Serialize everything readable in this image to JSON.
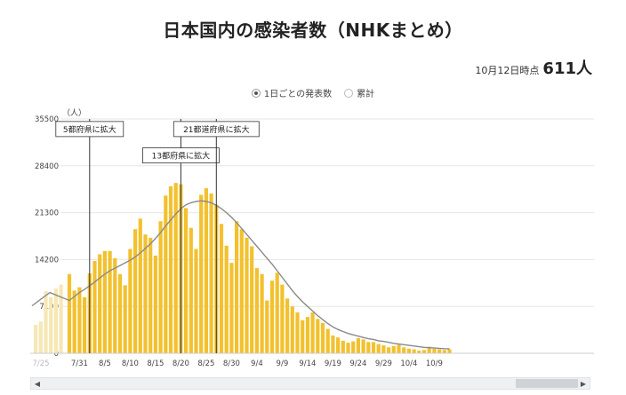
{
  "page": {
    "title": "日本国内の感染者数（NHKまとめ）",
    "asof_label": "10月12日時点",
    "asof_value": "611人",
    "toggle": {
      "daily": "1日ごとの発表数",
      "cumulative": "累計"
    },
    "scroll": {
      "left_icon": "chevron-left-icon",
      "right_icon": "chevron-right-icon"
    }
  },
  "chart_data": {
    "type": "bar",
    "unit_label": "（人）",
    "ylim": [
      0,
      35500
    ],
    "yticks": [
      0,
      7100,
      14200,
      21300,
      28400,
      35500
    ],
    "x_ticks": [
      "7/31",
      "8/5",
      "8/10",
      "8/15",
      "8/20",
      "8/25",
      "8/30",
      "9/4",
      "9/9",
      "9/14",
      "9/19",
      "9/24",
      "9/29",
      "10/4",
      "10/9"
    ],
    "x_start_label": "7/25",
    "dates": [
      "7/29",
      "7/30",
      "7/31",
      "8/1",
      "8/2",
      "8/3",
      "8/4",
      "8/5",
      "8/6",
      "8/7",
      "8/8",
      "8/9",
      "8/10",
      "8/11",
      "8/12",
      "8/13",
      "8/14",
      "8/15",
      "8/16",
      "8/17",
      "8/18",
      "8/19",
      "8/20",
      "8/21",
      "8/22",
      "8/23",
      "8/24",
      "8/25",
      "8/26",
      "8/27",
      "8/28",
      "8/29",
      "8/30",
      "8/31",
      "9/1",
      "9/2",
      "9/3",
      "9/4",
      "9/5",
      "9/6",
      "9/7",
      "9/8",
      "9/9",
      "9/10",
      "9/11",
      "9/12",
      "9/13",
      "9/14",
      "9/15",
      "9/16",
      "9/17",
      "9/18",
      "9/19",
      "9/20",
      "9/21",
      "9/22",
      "9/23",
      "9/24",
      "9/25",
      "9/26",
      "9/27",
      "9/28",
      "9/29",
      "9/30",
      "10/1",
      "10/2",
      "10/3",
      "10/4",
      "10/5",
      "10/6",
      "10/7",
      "10/8",
      "10/9",
      "10/10",
      "10/11",
      "10/12"
    ],
    "values": [
      12000,
      9500,
      10000,
      8500,
      12100,
      14000,
      15000,
      15500,
      15500,
      14400,
      12000,
      10300,
      15800,
      18800,
      20400,
      18000,
      17500,
      14800,
      20000,
      23900,
      25300,
      25800,
      25600,
      22000,
      19000,
      15800,
      24000,
      25000,
      24200,
      22500,
      19600,
      16300,
      13700,
      20000,
      18800,
      17500,
      16200,
      12900,
      12000,
      8000,
      11000,
      12200,
      10400,
      8300,
      7100,
      6200,
      5000,
      5500,
      6200,
      5200,
      4600,
      3700,
      2700,
      2400,
      1900,
      1600,
      1800,
      2300,
      2100,
      1700,
      1700,
      1400,
      1200,
      900,
      1100,
      1300,
      900,
      700,
      600,
      400,
      500,
      1000,
      700,
      600,
      500,
      611
    ],
    "trend_left": [
      7200,
      9200
    ],
    "faded_bars": [
      4300,
      4800,
      9400,
      8500,
      9800,
      10400
    ],
    "trend": [
      8000,
      8600,
      9200,
      9700,
      10200,
      10800,
      11400,
      12000,
      12500,
      12900,
      13300,
      13700,
      14100,
      14600,
      15200,
      15900,
      16600,
      17400,
      18300,
      19300,
      20200,
      21100,
      21900,
      22500,
      22800,
      23000,
      23100,
      23000,
      22800,
      22400,
      21900,
      21300,
      20600,
      19800,
      18900,
      18000,
      17100,
      16200,
      15300,
      14400,
      13500,
      12500,
      11500,
      10500,
      9500,
      8600,
      7800,
      7100,
      6400,
      5700,
      5100,
      4500,
      4000,
      3600,
      3300,
      3000,
      2800,
      2600,
      2400,
      2200,
      2100,
      1900,
      1800,
      1650,
      1500,
      1400,
      1300,
      1200,
      1100,
      1000,
      900,
      850,
      800,
      750,
      700,
      680
    ],
    "annotations": [
      {
        "text": "5都府県に拡大",
        "date": "8/2",
        "box_value": 33500
      },
      {
        "text": "13都府県に拡大",
        "date": "8/20",
        "box_value": 29500
      },
      {
        "text": "21都道府県に拡大",
        "date": "8/27",
        "box_value": 33500
      }
    ],
    "bar_color": "#f2c12e",
    "faded_color": "#f6e7b4",
    "trend_color": "#8a8a8a",
    "grid": true
  }
}
